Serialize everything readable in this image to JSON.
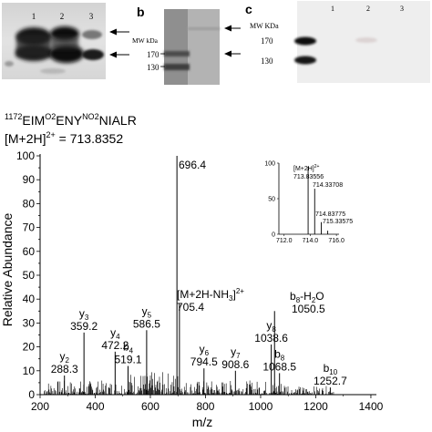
{
  "panel_a": {
    "lanes": [
      "1",
      "2",
      "3"
    ]
  },
  "panel_b": {
    "letter": "b",
    "mw_label": "MW kDa",
    "markers": [
      "170",
      "130"
    ]
  },
  "panel_c": {
    "letter": "c",
    "mw_label": "MW KDa",
    "markers": [
      "170",
      "130"
    ],
    "lanes": [
      "1",
      "2",
      "3"
    ]
  },
  "spectrum": {
    "peptide_num": "1172",
    "peptide_seg1": "EIM",
    "peptide_sup1": "O2",
    "peptide_seg2": "ENY",
    "peptide_sup2": "NO2",
    "peptide_seg3": "NIALR",
    "precursor_pre": "[M+2H]",
    "precursor_sup": "2+",
    "precursor_post": " = 713.8352",
    "ylabel": "Relative Abundance",
    "xlabel": "m/z",
    "yticks": [
      "0",
      "5",
      "10",
      "15",
      "20",
      "25",
      "30",
      "35",
      "40",
      "45",
      "50",
      "55",
      "60",
      "65",
      "70",
      "75",
      "80",
      "85",
      "90",
      "95",
      "100"
    ],
    "xticks": [
      "200",
      "400",
      "600",
      "800",
      "1000",
      "1200",
      "1400"
    ],
    "ylim": [
      0,
      100
    ],
    "xlim": [
      200,
      1420
    ],
    "peaks": [
      {
        "mz": 288.3,
        "int": 8
      },
      {
        "mz": 359.2,
        "int": 26
      },
      {
        "mz": 472.2,
        "int": 18
      },
      {
        "mz": 519.1,
        "int": 12
      },
      {
        "mz": 586.5,
        "int": 27
      },
      {
        "mz": 696.4,
        "int": 100
      },
      {
        "mz": 705.4,
        "int": 38
      },
      {
        "mz": 794.5,
        "int": 11
      },
      {
        "mz": 908.6,
        "int": 10
      },
      {
        "mz": 1038.6,
        "int": 21
      },
      {
        "mz": 1050.5,
        "int": 35
      },
      {
        "mz": 1068.5,
        "int": 9
      },
      {
        "mz": 1252.7,
        "int": 3
      }
    ],
    "labels": [
      {
        "ion": "y",
        "sub": "2",
        "mz": "288.3",
        "at": 288.3,
        "top": 8
      },
      {
        "ion": "y",
        "sub": "3",
        "mz": "359.2",
        "at": 359.2,
        "top": 26
      },
      {
        "ion": "y",
        "sub": "4",
        "mz": "472.2",
        "at": 472.2,
        "top": 18
      },
      {
        "ion": "b",
        "sub": "4",
        "mz": "519.1",
        "at": 519.1,
        "top": 12
      },
      {
        "ion": "y",
        "sub": "5",
        "mz": "586.5",
        "at": 586.5,
        "top": 27
      },
      {
        "ion": "y",
        "sub": "6",
        "mz": "794.5",
        "at": 794.5,
        "top": 11
      },
      {
        "ion": "y",
        "sub": "7",
        "mz": "908.6",
        "at": 908.6,
        "top": 10
      },
      {
        "ion": "y",
        "sub": "8",
        "mz": "1038.6",
        "at": 1038.6,
        "top": 21
      },
      {
        "ion": "b",
        "sub": "8",
        "mz": "1068.5",
        "at": 1068.5,
        "top": 9
      },
      {
        "ion": "b",
        "sub": "10",
        "mz": "1252.7",
        "at": 1252.7,
        "top": 3
      }
    ],
    "base_peak_label": "696.4",
    "nh3_pre": "[M+2H-NH",
    "nh3_sub": "3",
    "nh3_post": "]",
    "nh3_sup": "2+",
    "nh3_value": "705.4",
    "water_ion": "b",
    "water_sub": "8",
    "water_suffix": "-H",
    "water_sub2": "2",
    "water_end": "O",
    "water_value": "1050.5"
  },
  "inset": {
    "label_pre": "[M+2H]",
    "label_sup": "2+",
    "yticks": [
      "0",
      "50",
      "100"
    ],
    "xticks": [
      "712.0",
      "714.0",
      "716.0"
    ],
    "xlim": [
      711.6,
      716.2
    ],
    "peaks": [
      {
        "mz": 713.83556,
        "int": 95
      },
      {
        "mz": 714.33708,
        "int": 64
      },
      {
        "mz": 714.83775,
        "int": 17
      },
      {
        "mz": 715.33575,
        "int": 5
      }
    ],
    "peak_labels": [
      "713.83556",
      "714.33708",
      "714.83775",
      "715.33575"
    ]
  }
}
